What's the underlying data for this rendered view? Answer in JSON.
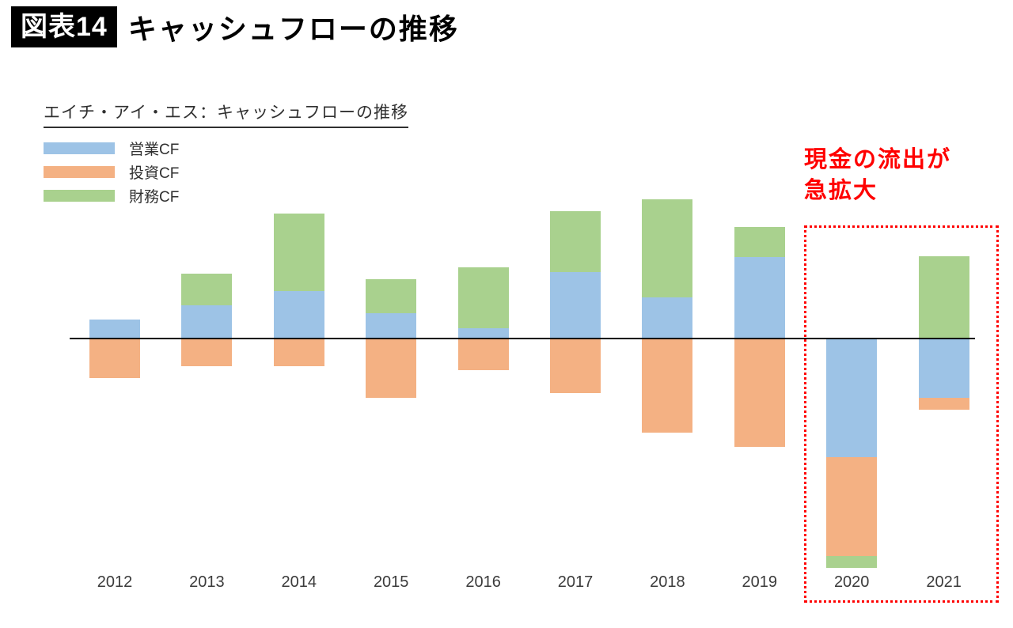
{
  "header": {
    "figure_label": "図表14",
    "title": "キャッシュフローの推移"
  },
  "annotation": {
    "line1": "現金の流出が",
    "line2": "急拡大",
    "full_text": "現金の流出が急拡大",
    "color": "#ff0000"
  },
  "chart_data": {
    "type": "bar",
    "stacked": true,
    "title": "エイチ・アイ・エス：キャッシュフローの推移",
    "categories": [
      "2012",
      "2013",
      "2014",
      "2015",
      "2016",
      "2017",
      "2018",
      "2019",
      "2020",
      "2021"
    ],
    "series": [
      {
        "name": "営業CF",
        "color": "#9dc3e6",
        "values": [
          24,
          42,
          60,
          32,
          13,
          84,
          52,
          103,
          -150,
          -75
        ]
      },
      {
        "name": "投資CF",
        "color": "#f4b183",
        "values": [
          -50,
          -35,
          -35,
          -75,
          -40,
          -69,
          -119,
          -137,
          -125,
          -15
        ]
      },
      {
        "name": "財務CF",
        "color": "#a9d18e",
        "values": [
          0,
          40,
          98,
          43,
          77,
          77,
          124,
          38,
          -15,
          104
        ]
      }
    ],
    "xlabel": "",
    "ylabel": "",
    "ylim": [
      -300,
      210
    ],
    "grid": false,
    "legend_position": "top-left",
    "annotation_text": "現金の流出が急拡大",
    "highlighted_categories": [
      "2020",
      "2021"
    ]
  }
}
